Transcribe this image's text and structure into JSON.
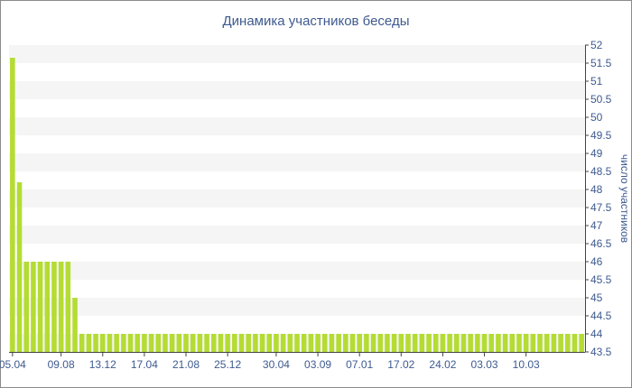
{
  "chart_data": {
    "type": "bar",
    "title": "Динамика участников беседы",
    "ylabel": "число участников",
    "xlabel": "",
    "ylim": [
      43.5,
      52
    ],
    "y_ticks": [
      "43.5",
      "44",
      "44.5",
      "45",
      "45.5",
      "46",
      "46.5",
      "47",
      "47.5",
      "48",
      "48.5",
      "49",
      "49.5",
      "50",
      "50.5",
      "51",
      "51.5",
      "52"
    ],
    "x_tick_labels": [
      "05.04",
      "09.08",
      "13.12",
      "17.04",
      "21.08",
      "25.12",
      "30.04",
      "03.09",
      "07.01",
      "17.02",
      "24.02",
      "03.03",
      "10.03"
    ],
    "x_tick_positions": [
      0,
      7,
      13,
      19,
      25,
      31,
      38,
      44,
      50,
      56,
      62,
      68,
      74
    ],
    "values": [
      51.65,
      48.2,
      46,
      46,
      46,
      46,
      46,
      46,
      46,
      45,
      44,
      44,
      44,
      44,
      44,
      44,
      44,
      44,
      44,
      44,
      44,
      44,
      44,
      44,
      44,
      44,
      44,
      44,
      44,
      44,
      44,
      44,
      44,
      44,
      44,
      44,
      44,
      44,
      44,
      44,
      44,
      44,
      44,
      44,
      44,
      44,
      44,
      44,
      44,
      44,
      44,
      44,
      44,
      44,
      44,
      44,
      44,
      44,
      44,
      44,
      44,
      44,
      44,
      44,
      44,
      44,
      44,
      44,
      44,
      44,
      44,
      44,
      44,
      44,
      44,
      44,
      44,
      44,
      44,
      44,
      44,
      44,
      44
    ],
    "y_axis_position": "right",
    "grid": "horizontal-bands",
    "colors": {
      "bar": "#b4dc32",
      "band": "#f5f5f5",
      "text": "#3e5a8f",
      "axis": "#444444"
    }
  }
}
